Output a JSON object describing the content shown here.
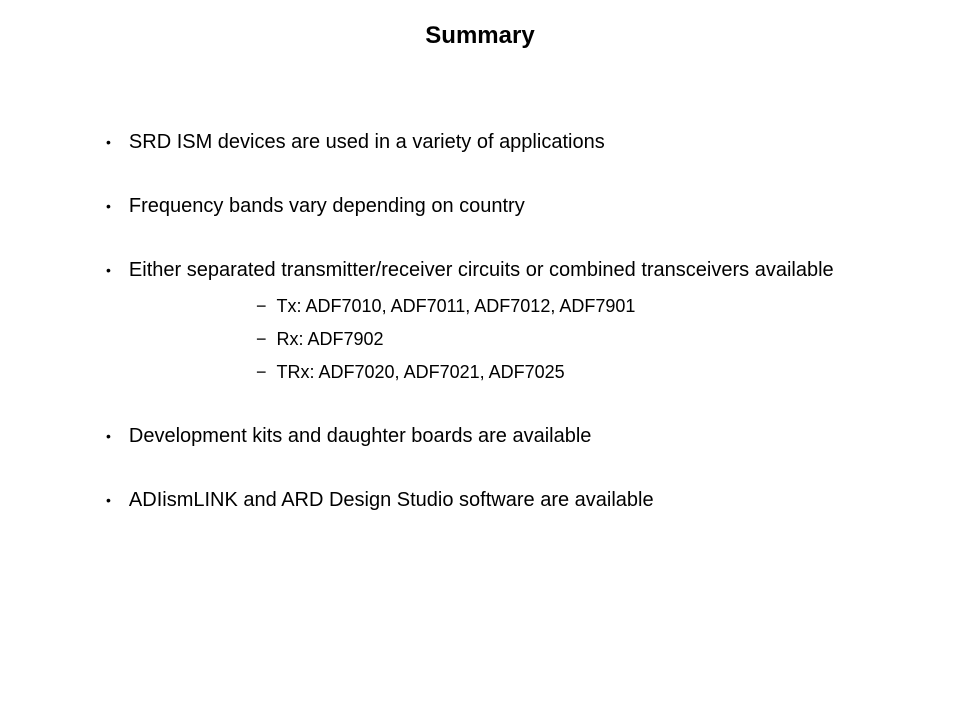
{
  "title": "Summary",
  "bullets": {
    "item0": "SRD ISM devices are used in a variety of applications",
    "item1": "Frequency bands vary depending on country",
    "item2": "Either separated transmitter/receiver circuits or combined transceivers available",
    "item2_sub0": "Tx: ADF7010, ADF7011, ADF7012, ADF7901",
    "item2_sub1": "Rx: ADF7902",
    "item2_sub2": "TRx: ADF7020, ADF7021, ADF7025",
    "item3": "Development kits and daughter boards are available",
    "item4": "ADIismLINK and ARD Design Studio software are available"
  },
  "styling": {
    "background_color": "#ffffff",
    "text_color": "#000000",
    "title_fontsize": 24,
    "title_fontweight": "bold",
    "body_fontsize": 20,
    "sub_fontsize": 18,
    "font_family": "Verdana, Geneva, sans-serif",
    "bullet_marker": "•",
    "sub_marker": "−"
  }
}
